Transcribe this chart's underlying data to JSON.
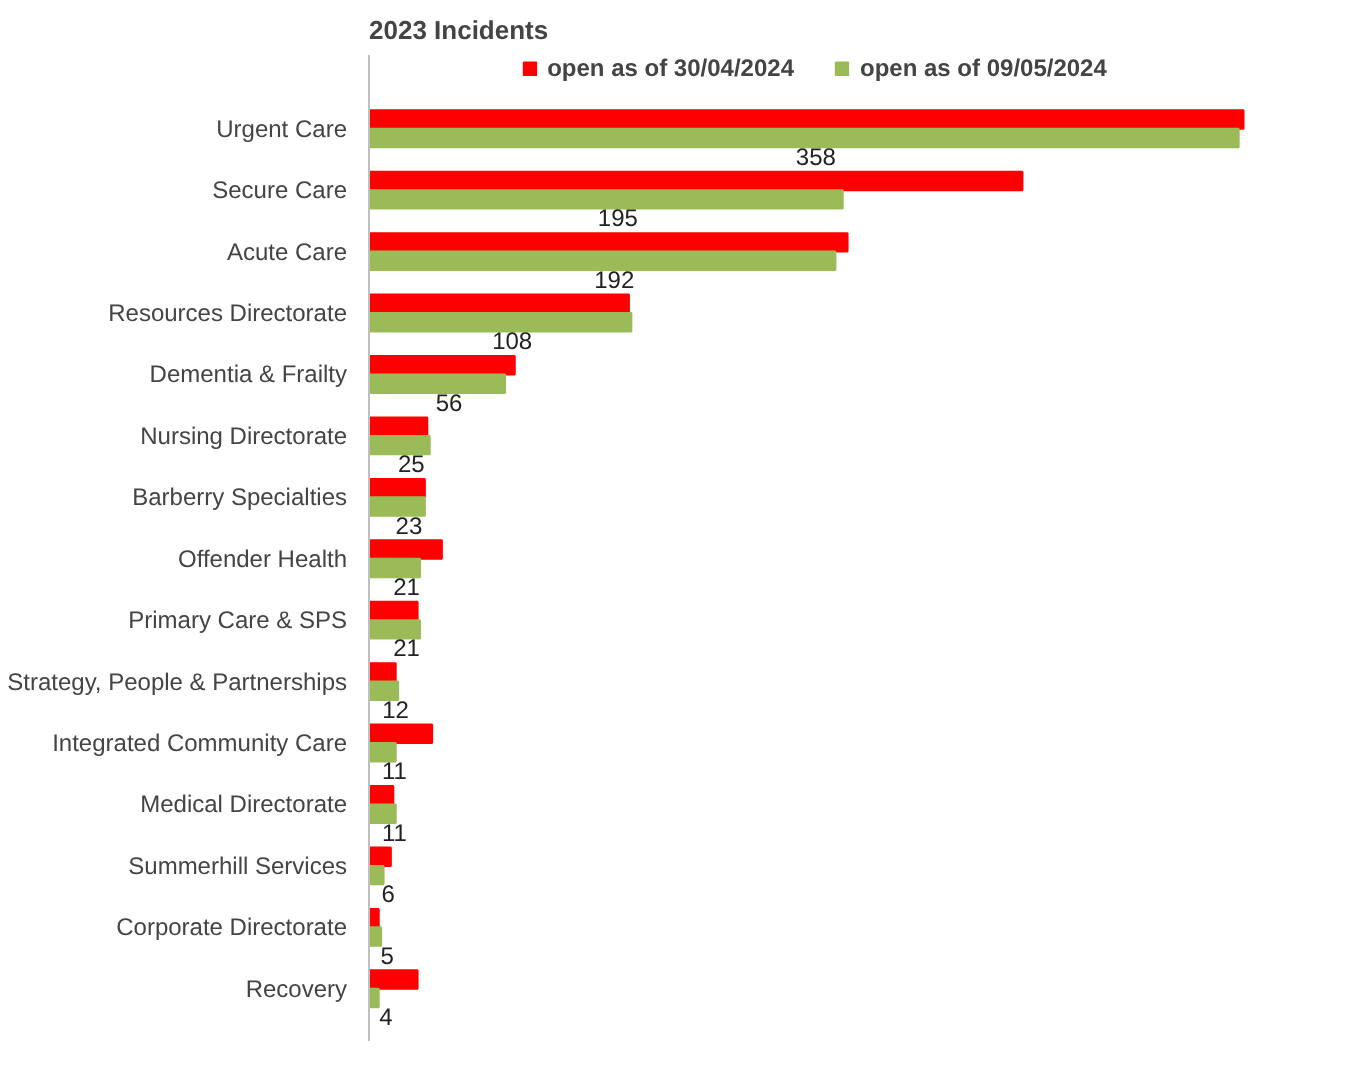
{
  "chart_data": {
    "type": "bar",
    "orientation": "horizontal",
    "title": "2023 Incidents",
    "categories": [
      "Urgent Care",
      "Secure Care",
      "Acute Care",
      "Resources Directorate",
      "Dementia & Frailty",
      "Nursing Directorate",
      "Barberry Specialties",
      "Offender Health",
      "Primary Care & SPS",
      "Strategy, People & Partnerships",
      "Integrated Community Care",
      "Medical Directorate",
      "Summerhill Services",
      "Corporate Directorate",
      "Recovery"
    ],
    "series": [
      {
        "name": "open as of 30/04/2024",
        "color": "#ff0000",
        "values": [
          360,
          269,
          197,
          107,
          60,
          24,
          23,
          30,
          20,
          11,
          26,
          10,
          9,
          4,
          20
        ]
      },
      {
        "name": "open as of 09/05/2024",
        "color": "#9bbb59",
        "values": [
          358,
          195,
          192,
          108,
          56,
          25,
          23,
          21,
          21,
          12,
          11,
          11,
          6,
          5,
          4
        ],
        "value_labels": [
          "358",
          "195",
          "192",
          "108",
          "56",
          "25",
          "23",
          "21",
          "21",
          "12",
          "11",
          "11",
          "6",
          "5",
          "4"
        ]
      }
    ],
    "legend": "top",
    "grid": false
  }
}
